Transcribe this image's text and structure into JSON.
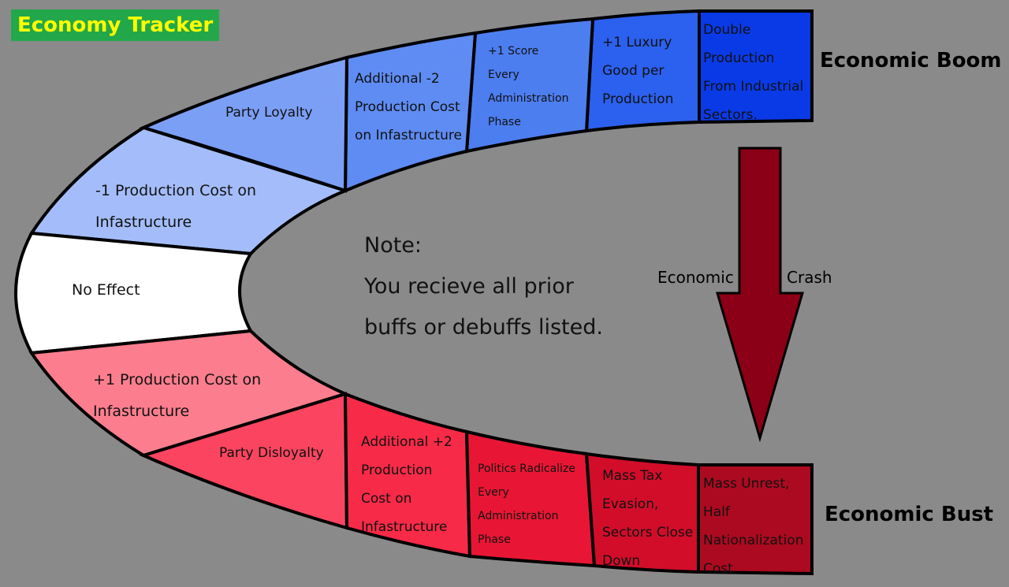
{
  "title": "Economy Tracker",
  "boom_label": "Economic Boom",
  "bust_label": "Economic Bust",
  "note": {
    "heading": "Note:",
    "body": "You recieve all prior buffs or debuffs listed."
  },
  "crash_arrow": {
    "left_word": "Economic",
    "right_word": "Crash",
    "color": "#8b0016"
  },
  "segments": {
    "top": [
      {
        "text": "Double\nProduction\nFrom Industrial\nSectors.",
        "color": "#0a3ae6"
      },
      {
        "text": "+1 Luxury\nGood per\nProduction",
        "color": "#2c60ee"
      },
      {
        "text": "+1 Score\nEvery\nAdministration\nPhase",
        "color": "#4d7ef0"
      },
      {
        "text": "Additional -2\nProduction Cost\non Infastructure",
        "color": "#5f8cf2"
      },
      {
        "text": "Party Loyalty",
        "color": "#7c9ff6"
      },
      {
        "text": "-1 Production Cost on\nInfastructure",
        "color": "#a4bdfa"
      }
    ],
    "center": {
      "text": "No Effect",
      "color": "#ffffff"
    },
    "bottom": [
      {
        "text": "+1 Production Cost on\nInfastructure",
        "color": "#fc7e8e"
      },
      {
        "text": "Party Disloyalty",
        "color": "#fb4560"
      },
      {
        "text": "Additional +2\nProduction\nCost on\nInfastructure",
        "color": "#f72a48"
      },
      {
        "text": "Politics Radicalize\nEvery\nAdministration\nPhase",
        "color": "#e81634"
      },
      {
        "text": "Mass Tax\nEvasion,\nSectors Close\nDown",
        "color": "#d10d2a"
      },
      {
        "text": "Mass Unrest,\nHalf\nNationalization\nCost",
        "color": "#ac0a20"
      }
    ]
  }
}
